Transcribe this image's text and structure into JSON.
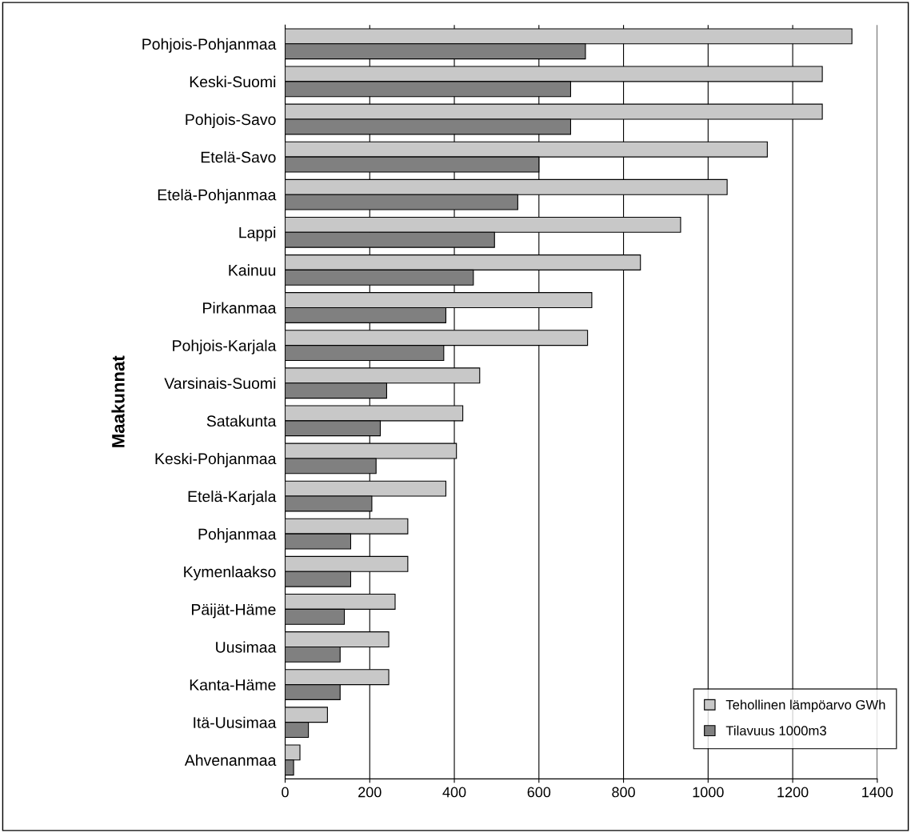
{
  "chart_data": {
    "type": "bar",
    "orientation": "horizontal",
    "ylabel": "Maakunnat",
    "categories": [
      "Pohjois-Pohjanmaa",
      "Keski-Suomi",
      "Pohjois-Savo",
      "Etelä-Savo",
      "Etelä-Pohjanmaa",
      "Lappi",
      "Kainuu",
      "Pirkanmaa",
      "Pohjois-Karjala",
      "Varsinais-Suomi",
      "Satakunta",
      "Keski-Pohjanmaa",
      "Etelä-Karjala",
      "Pohjanmaa",
      "Kymenlaakso",
      "Päijät-Häme",
      "Uusimaa",
      "Kanta-Häme",
      "Itä-Uusimaa",
      "Ahvenanmaa"
    ],
    "series": [
      {
        "name": "Tehollinen lämpöarvo GWh",
        "color": "#c8c8c8",
        "values": [
          1340,
          1270,
          1270,
          1140,
          1045,
          935,
          840,
          725,
          715,
          460,
          420,
          405,
          380,
          290,
          290,
          260,
          245,
          245,
          100,
          35
        ]
      },
      {
        "name": "Tilavuus 1000m3",
        "color": "#808080",
        "values": [
          710,
          675,
          675,
          600,
          550,
          495,
          445,
          380,
          375,
          240,
          225,
          215,
          205,
          155,
          155,
          140,
          130,
          130,
          55,
          20
        ]
      }
    ],
    "xlim": [
      0,
      1400
    ],
    "xticks": [
      0,
      200,
      400,
      600,
      800,
      1000,
      1200,
      1400
    ],
    "grid": "x",
    "legend": "bottom right"
  }
}
